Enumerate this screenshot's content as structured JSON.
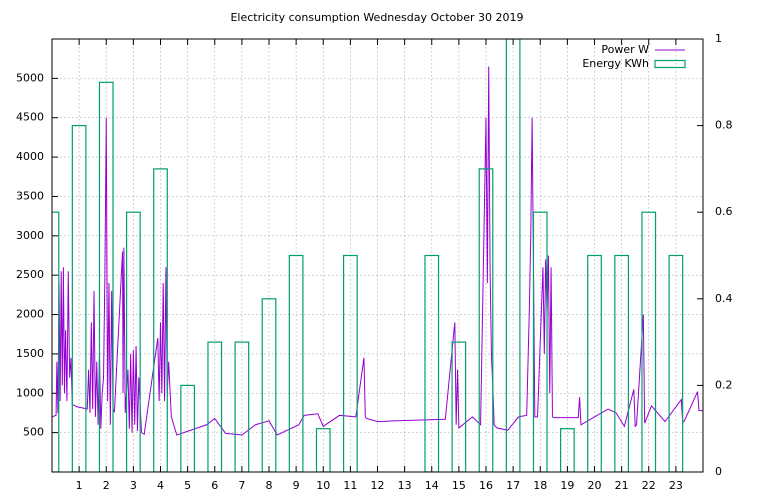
{
  "chart_data": {
    "type": "line",
    "title": "Electricity consumption Wednesday October 30 2019",
    "xlim": [
      0,
      24
    ],
    "xticks": [
      1,
      2,
      3,
      4,
      5,
      6,
      7,
      8,
      9,
      10,
      11,
      12,
      13,
      14,
      15,
      16,
      17,
      18,
      19,
      20,
      21,
      22,
      23
    ],
    "ylim": [
      0,
      5500
    ],
    "yticks": [
      500,
      1000,
      1500,
      2000,
      2500,
      3000,
      3500,
      4000,
      4500,
      5000
    ],
    "y2lim": [
      0,
      1
    ],
    "y2ticks": [
      0,
      0.2,
      0.4,
      0.6,
      0.8,
      1
    ],
    "grid": true,
    "legend": "top-right",
    "series": [
      {
        "name": "Power W",
        "color": "#9400d3",
        "type": "line",
        "x": [
          0,
          0.15,
          0.18,
          0.22,
          0.26,
          0.3,
          0.34,
          0.38,
          0.42,
          0.46,
          0.5,
          0.55,
          0.6,
          0.65,
          0.7,
          0.75,
          0.8,
          0.85,
          0.9,
          1.3,
          1.35,
          1.4,
          1.45,
          1.5,
          1.55,
          1.6,
          1.65,
          1.7,
          1.75,
          1.8,
          1.85,
          1.9,
          1.95,
          2.0,
          2.05,
          2.1,
          2.15,
          2.2,
          2.25,
          2.3,
          2.6,
          2.62,
          2.65,
          2.7,
          2.8,
          2.85,
          2.9,
          2.95,
          3.0,
          3.05,
          3.1,
          3.15,
          3.2,
          3.3,
          3.4,
          3.9,
          3.95,
          4.0,
          4.05,
          4.1,
          4.15,
          4.2,
          4.25,
          4.3,
          4.4,
          4.6,
          5.7,
          6.0,
          6.4,
          7.0,
          7.5,
          8.0,
          8.3,
          9.1,
          9.3,
          9.8,
          10.0,
          10.6,
          11.2,
          11.5,
          11.55,
          11.6,
          12.0,
          12.6,
          14.5,
          14.85,
          14.9,
          14.95,
          15.0,
          15.5,
          15.8,
          16.0,
          16.05,
          16.1,
          16.15,
          16.2,
          16.25,
          16.3,
          16.4,
          16.8,
          17.2,
          17.5,
          17.6,
          17.65,
          17.7,
          17.75,
          17.8,
          17.9,
          18.1,
          18.15,
          18.2,
          18.25,
          18.3,
          18.35,
          18.4,
          18.45,
          18.5,
          19.4,
          19.45,
          19.5,
          20.5,
          20.8,
          21.1,
          21.45,
          21.5,
          21.55,
          21.8,
          21.85,
          22.1,
          22.6,
          23.2,
          23.25,
          23.3,
          23.8,
          23.85,
          24
        ],
        "values": [
          700,
          720,
          1400,
          750,
          2400,
          900,
          2550,
          1100,
          2600,
          1000,
          1800,
          900,
          2550,
          1200,
          1450,
          850,
          850,
          840,
          830,
          800,
          1300,
          750,
          1900,
          800,
          2300,
          700,
          1400,
          600,
          1500,
          550,
          1000,
          1200,
          2500,
          4500,
          900,
          2400,
          600,
          2300,
          800,
          760,
          2800,
          1000,
          2850,
          750,
          1300,
          550,
          1500,
          500,
          1550,
          600,
          1600,
          520,
          1200,
          500,
          480,
          1700,
          900,
          1900,
          1000,
          2400,
          900,
          2600,
          1000,
          1400,
          700,
          470,
          600,
          680,
          490,
          470,
          600,
          650,
          470,
          600,
          720,
          740,
          580,
          720,
          700,
          1450,
          700,
          680,
          640,
          650,
          670,
          1900,
          600,
          1300,
          560,
          700,
          600,
          4500,
          2400,
          5150,
          2600,
          1500,
          1100,
          600,
          560,
          530,
          700,
          720,
          2100,
          3000,
          4500,
          2600,
          700,
          700,
          2600,
          1500,
          2700,
          2000,
          2750,
          1000,
          2600,
          700,
          690,
          690,
          950,
          600,
          800,
          750,
          580,
          1050,
          580,
          600,
          2000,
          620,
          840,
          640,
          920,
          640,
          640,
          1020,
          780,
          780
        ]
      },
      {
        "name": "Energy KWh",
        "color": "#009e73",
        "type": "bar",
        "axis": "y2",
        "x": [
          0,
          1,
          2,
          3,
          4,
          5,
          6,
          7,
          8,
          9,
          10,
          11,
          12,
          13,
          14,
          15,
          16,
          17,
          18,
          19,
          20,
          21,
          22,
          23
        ],
        "values": [
          0.6,
          0.8,
          0.9,
          0.6,
          0.7,
          0.2,
          0.3,
          0.3,
          0.4,
          0.5,
          0.1,
          0.5,
          0,
          0,
          0.5,
          0.3,
          0.7,
          1,
          0.6,
          0.1,
          0.5,
          0.5,
          0.6,
          0.5
        ]
      }
    ]
  }
}
